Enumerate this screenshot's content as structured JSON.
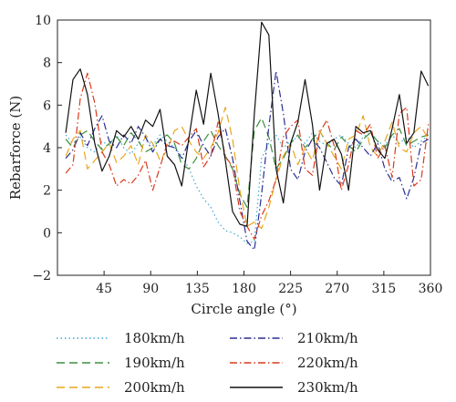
{
  "chart_data": {
    "type": "line",
    "xlabel": "Circle angle (°)",
    "ylabel": "Rebarforce (N)",
    "xlim": [
      0,
      360
    ],
    "ylim": [
      -2,
      10
    ],
    "xticks": [
      0,
      45,
      90,
      135,
      180,
      225,
      270,
      315,
      360
    ],
    "yticks": [
      -2,
      0,
      2,
      4,
      6,
      8,
      10
    ],
    "grid": false,
    "legend_position": "bottom",
    "x": [
      8,
      15,
      22,
      29,
      36,
      43,
      50,
      57,
      64,
      71,
      78,
      85,
      92,
      99,
      106,
      113,
      120,
      127,
      134,
      141,
      148,
      155,
      162,
      169,
      176,
      183,
      190,
      197,
      204,
      211,
      218,
      225,
      232,
      239,
      246,
      253,
      260,
      267,
      274,
      281,
      288,
      295,
      302,
      309,
      316,
      323,
      330,
      337,
      344,
      351,
      358
    ],
    "series": [
      {
        "name": "180km/h",
        "color": "#3fa9d4",
        "dash": "1.5,3",
        "values": [
          4.6,
          4.2,
          4.5,
          4.0,
          3.8,
          4.3,
          4.1,
          4.6,
          4.0,
          3.7,
          4.2,
          4.4,
          4.1,
          4.6,
          4.3,
          4.0,
          3.6,
          3.0,
          2.2,
          1.6,
          1.2,
          0.5,
          0.1,
          0.0,
          -0.2,
          -0.5,
          -0.4,
          3.5,
          4.2,
          4.6,
          4.0,
          4.3,
          4.5,
          4.2,
          4.7,
          4.3,
          4.1,
          4.4,
          4.6,
          4.2,
          4.0,
          4.5,
          4.7,
          4.3,
          4.1,
          4.6,
          4.2,
          4.5,
          4.0,
          4.3,
          4.6
        ]
      },
      {
        "name": "190km/h",
        "color": "#3d8f3d",
        "dash": "9,5",
        "values": [
          4.4,
          4.0,
          4.6,
          4.8,
          4.3,
          3.9,
          4.2,
          4.5,
          4.1,
          4.7,
          4.3,
          3.8,
          4.0,
          4.4,
          4.6,
          4.2,
          3.2,
          3.0,
          3.5,
          4.3,
          4.8,
          4.1,
          3.6,
          3.0,
          1.8,
          1.2,
          4.8,
          5.4,
          4.5,
          3.0,
          3.5,
          4.2,
          4.6,
          4.0,
          4.4,
          4.8,
          4.2,
          3.9,
          4.5,
          4.1,
          3.8,
          4.4,
          4.7,
          4.3,
          4.0,
          4.6,
          4.9,
          4.1,
          4.3,
          4.5,
          4.6
        ]
      },
      {
        "name": "200km/h",
        "color": "#e8a61c",
        "dash": "9,5",
        "values": [
          3.6,
          4.4,
          4.8,
          3.0,
          3.4,
          3.8,
          4.2,
          3.3,
          3.6,
          4.1,
          3.2,
          4.6,
          4.2,
          3.4,
          3.9,
          4.8,
          5.0,
          4.3,
          3.8,
          3.5,
          4.0,
          4.7,
          5.9,
          4.4,
          2.0,
          0.3,
          0.5,
          0.2,
          1.2,
          2.5,
          3.6,
          4.2,
          3.2,
          4.0,
          3.4,
          4.8,
          4.2,
          3.6,
          3.0,
          4.4,
          4.6,
          5.5,
          4.0,
          3.6,
          4.3,
          5.2,
          4.0,
          3.8,
          4.7,
          5.0,
          4.4
        ]
      },
      {
        "name": "210km/h",
        "color": "#2a2f92",
        "dash": "8,3,1.5,3",
        "values": [
          3.5,
          3.9,
          4.7,
          4.1,
          4.9,
          5.5,
          4.3,
          4.0,
          4.6,
          4.2,
          5.0,
          4.5,
          3.8,
          4.4,
          4.1,
          4.0,
          3.5,
          4.3,
          4.8,
          4.1,
          3.6,
          4.5,
          4.9,
          3.5,
          1.5,
          -0.4,
          -0.8,
          1.8,
          5.0,
          7.6,
          5.6,
          3.0,
          2.5,
          3.8,
          4.4,
          4.0,
          3.3,
          2.6,
          2.2,
          4.0,
          4.4,
          4.0,
          3.6,
          4.2,
          3.0,
          2.4,
          2.6,
          1.6,
          2.6,
          4.2,
          4.4
        ]
      },
      {
        "name": "220km/h",
        "color": "#d9391b",
        "dash": "8,3,1.5,3",
        "values": [
          2.8,
          3.2,
          6.3,
          7.5,
          6.1,
          3.8,
          3.2,
          2.2,
          2.5,
          2.3,
          2.7,
          3.4,
          2.0,
          3.1,
          4.2,
          4.3,
          4.1,
          4.5,
          4.9,
          3.1,
          3.6,
          5.2,
          3.6,
          3.1,
          1.0,
          0.3,
          -0.3,
          0.8,
          1.5,
          2.5,
          4.5,
          5.0,
          5.3,
          3.0,
          2.7,
          4.7,
          5.3,
          4.1,
          2.0,
          3.2,
          4.8,
          4.6,
          5.1,
          3.5,
          4.1,
          2.6,
          5.6,
          5.9,
          2.2,
          2.5,
          5.1
        ]
      },
      {
        "name": "230km/h",
        "color": "#111111",
        "dash": "",
        "values": [
          4.7,
          7.2,
          7.7,
          6.5,
          4.2,
          2.9,
          3.6,
          4.8,
          4.5,
          5.0,
          4.4,
          5.3,
          5.0,
          5.8,
          3.6,
          3.2,
          2.2,
          4.5,
          6.7,
          5.1,
          7.5,
          5.6,
          3.4,
          1.0,
          0.4,
          0.3,
          5.6,
          9.9,
          9.3,
          3.0,
          1.4,
          4.2,
          5.2,
          7.2,
          5.1,
          2.0,
          4.2,
          4.4,
          3.7,
          2.0,
          5.0,
          4.7,
          4.8,
          3.9,
          3.5,
          4.9,
          6.5,
          4.2,
          4.7,
          7.6,
          6.9
        ]
      }
    ]
  }
}
